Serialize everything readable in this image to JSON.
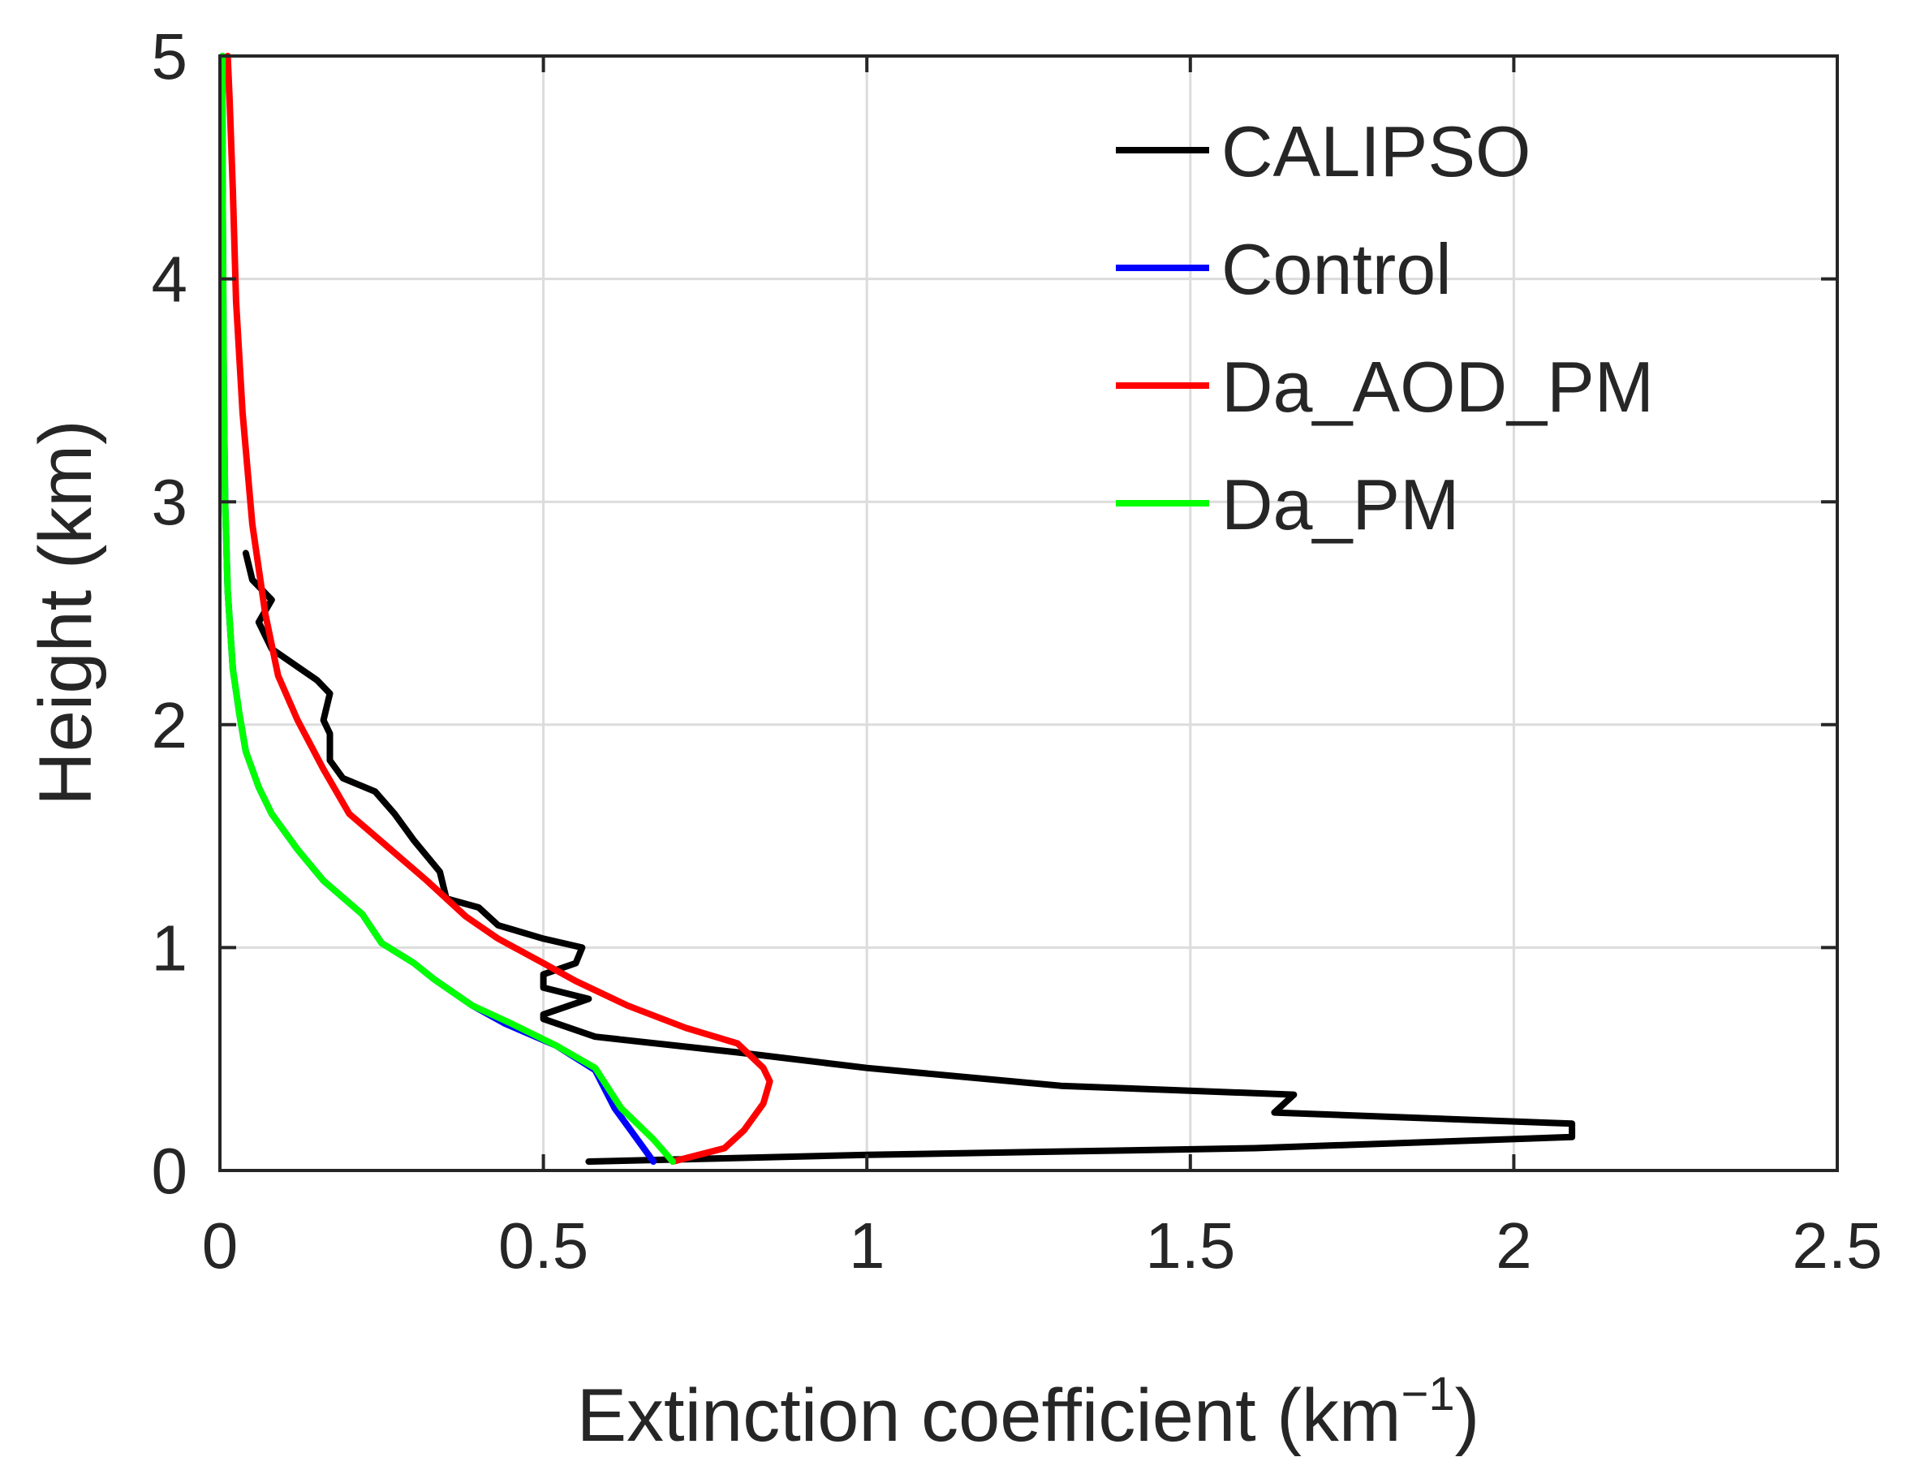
{
  "chart_data": {
    "type": "line",
    "orientation": "vertical-profile",
    "xlabel": "Extinction coefficient (km",
    "xlabel_sup": "−1",
    "xlabel_end": ")",
    "ylabel": "Height (km)",
    "xlim": [
      0,
      2.5
    ],
    "ylim": [
      0,
      5
    ],
    "xticks": [
      0,
      0.5,
      1,
      1.5,
      2,
      2.5
    ],
    "xtick_labels": [
      "0",
      "0.5",
      "1",
      "1.5",
      "2",
      "2.5"
    ],
    "yticks": [
      0,
      1,
      2,
      3,
      4,
      5
    ],
    "ytick_labels": [
      "0",
      "1",
      "2",
      "3",
      "4",
      "5"
    ],
    "grid": true,
    "legend_position": "top-right",
    "series": [
      {
        "name": "CALIPSO",
        "color": "#000000",
        "points": [
          [
            0.57,
            0.04
          ],
          [
            1.0,
            0.07
          ],
          [
            1.6,
            0.1
          ],
          [
            2.09,
            0.15
          ],
          [
            2.09,
            0.21
          ],
          [
            1.63,
            0.26
          ],
          [
            1.66,
            0.34
          ],
          [
            1.3,
            0.38
          ],
          [
            1.0,
            0.46
          ],
          [
            0.8,
            0.53
          ],
          [
            0.58,
            0.6
          ],
          [
            0.5,
            0.68
          ],
          [
            0.5,
            0.7
          ],
          [
            0.57,
            0.77
          ],
          [
            0.5,
            0.82
          ],
          [
            0.5,
            0.88
          ],
          [
            0.55,
            0.93
          ],
          [
            0.56,
            1.0
          ],
          [
            0.5,
            1.04
          ],
          [
            0.43,
            1.1
          ],
          [
            0.4,
            1.18
          ],
          [
            0.35,
            1.22
          ],
          [
            0.34,
            1.34
          ],
          [
            0.3,
            1.48
          ],
          [
            0.27,
            1.6
          ],
          [
            0.24,
            1.7
          ],
          [
            0.19,
            1.76
          ],
          [
            0.17,
            1.84
          ],
          [
            0.17,
            1.96
          ],
          [
            0.16,
            2.02
          ],
          [
            0.17,
            2.14
          ],
          [
            0.15,
            2.2
          ],
          [
            0.08,
            2.34
          ],
          [
            0.06,
            2.46
          ],
          [
            0.08,
            2.56
          ],
          [
            0.05,
            2.65
          ],
          [
            0.04,
            2.77
          ]
        ]
      },
      {
        "name": "Control",
        "color": "#0000ff",
        "points": [
          [
            0.67,
            0.04
          ],
          [
            0.65,
            0.12
          ],
          [
            0.61,
            0.28
          ],
          [
            0.58,
            0.45
          ],
          [
            0.52,
            0.56
          ],
          [
            0.44,
            0.66
          ],
          [
            0.39,
            0.74
          ],
          [
            0.33,
            0.86
          ],
          [
            0.3,
            0.93
          ],
          [
            0.25,
            1.02
          ],
          [
            0.22,
            1.15
          ],
          [
            0.16,
            1.3
          ],
          [
            0.12,
            1.44
          ],
          [
            0.08,
            1.6
          ],
          [
            0.06,
            1.72
          ],
          [
            0.04,
            1.88
          ],
          [
            0.03,
            2.05
          ],
          [
            0.02,
            2.25
          ],
          [
            0.012,
            2.6
          ],
          [
            0.008,
            3.0
          ],
          [
            0.006,
            3.5
          ],
          [
            0.005,
            4.0
          ],
          [
            0.004,
            4.5
          ],
          [
            0.004,
            5.0
          ]
        ]
      },
      {
        "name": "Da_AOD_PM",
        "color": "#ff0000",
        "points": [
          [
            0.7,
            0.04
          ],
          [
            0.78,
            0.1
          ],
          [
            0.81,
            0.18
          ],
          [
            0.84,
            0.3
          ],
          [
            0.85,
            0.4
          ],
          [
            0.84,
            0.46
          ],
          [
            0.8,
            0.57
          ],
          [
            0.72,
            0.64
          ],
          [
            0.63,
            0.74
          ],
          [
            0.55,
            0.85
          ],
          [
            0.5,
            0.93
          ],
          [
            0.43,
            1.04
          ],
          [
            0.38,
            1.14
          ],
          [
            0.32,
            1.3
          ],
          [
            0.26,
            1.45
          ],
          [
            0.2,
            1.6
          ],
          [
            0.16,
            1.8
          ],
          [
            0.12,
            2.02
          ],
          [
            0.09,
            2.22
          ],
          [
            0.07,
            2.5
          ],
          [
            0.05,
            2.9
          ],
          [
            0.035,
            3.4
          ],
          [
            0.025,
            3.9
          ],
          [
            0.02,
            4.4
          ],
          [
            0.015,
            4.8
          ],
          [
            0.012,
            5.0
          ]
        ]
      },
      {
        "name": "Da_PM",
        "color": "#00ff00",
        "points": [
          [
            0.7,
            0.04
          ],
          [
            0.67,
            0.14
          ],
          [
            0.62,
            0.28
          ],
          [
            0.58,
            0.46
          ],
          [
            0.52,
            0.56
          ],
          [
            0.45,
            0.66
          ],
          [
            0.39,
            0.74
          ],
          [
            0.33,
            0.86
          ],
          [
            0.3,
            0.93
          ],
          [
            0.25,
            1.02
          ],
          [
            0.22,
            1.15
          ],
          [
            0.16,
            1.3
          ],
          [
            0.12,
            1.44
          ],
          [
            0.08,
            1.6
          ],
          [
            0.06,
            1.72
          ],
          [
            0.04,
            1.88
          ],
          [
            0.03,
            2.05
          ],
          [
            0.02,
            2.25
          ],
          [
            0.012,
            2.6
          ],
          [
            0.008,
            3.0
          ],
          [
            0.006,
            3.5
          ],
          [
            0.005,
            4.0
          ],
          [
            0.004,
            4.5
          ],
          [
            0.004,
            5.0
          ]
        ]
      }
    ]
  }
}
